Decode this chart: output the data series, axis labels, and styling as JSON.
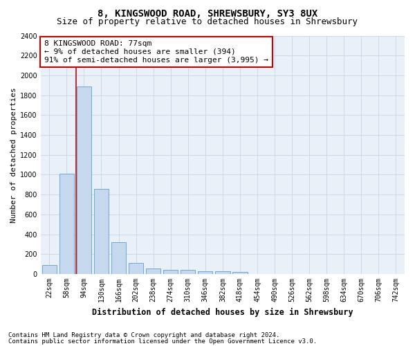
{
  "title": "8, KINGSWOOD ROAD, SHREWSBURY, SY3 8UX",
  "subtitle": "Size of property relative to detached houses in Shrewsbury",
  "xlabel": "Distribution of detached houses by size in Shrewsbury",
  "ylabel": "Number of detached properties",
  "bar_labels": [
    "22sqm",
    "58sqm",
    "94sqm",
    "130sqm",
    "166sqm",
    "202sqm",
    "238sqm",
    "274sqm",
    "310sqm",
    "346sqm",
    "382sqm",
    "418sqm",
    "454sqm",
    "490sqm",
    "526sqm",
    "562sqm",
    "598sqm",
    "634sqm",
    "670sqm",
    "706sqm",
    "742sqm"
  ],
  "bar_values": [
    90,
    1010,
    1890,
    860,
    320,
    110,
    55,
    45,
    40,
    30,
    25,
    20,
    0,
    0,
    0,
    0,
    0,
    0,
    0,
    0,
    0
  ],
  "bar_color": "#c5d8ed",
  "bar_edge_color": "#5a9fd4",
  "vline_x": 1.53,
  "vline_color": "#cc0000",
  "annotation_text": "8 KINGSWOOD ROAD: 77sqm\n← 9% of detached houses are smaller (394)\n91% of semi-detached houses are larger (3,995) →",
  "annotation_box_color": "#ffffff",
  "annotation_box_edge_color": "#cc0000",
  "ylim": [
    0,
    2400
  ],
  "yticks": [
    0,
    200,
    400,
    600,
    800,
    1000,
    1200,
    1400,
    1600,
    1800,
    2000,
    2200,
    2400
  ],
  "footer_line1": "Contains HM Land Registry data © Crown copyright and database right 2024.",
  "footer_line2": "Contains public sector information licensed under the Open Government Licence v3.0.",
  "bg_color": "#ffffff",
  "axes_bg_color": "#eaf0f8",
  "grid_color": "#c8d4e8",
  "title_fontsize": 10,
  "subtitle_fontsize": 9,
  "xlabel_fontsize": 8.5,
  "ylabel_fontsize": 8,
  "tick_fontsize": 7,
  "annotation_fontsize": 8,
  "footer_fontsize": 6.5
}
